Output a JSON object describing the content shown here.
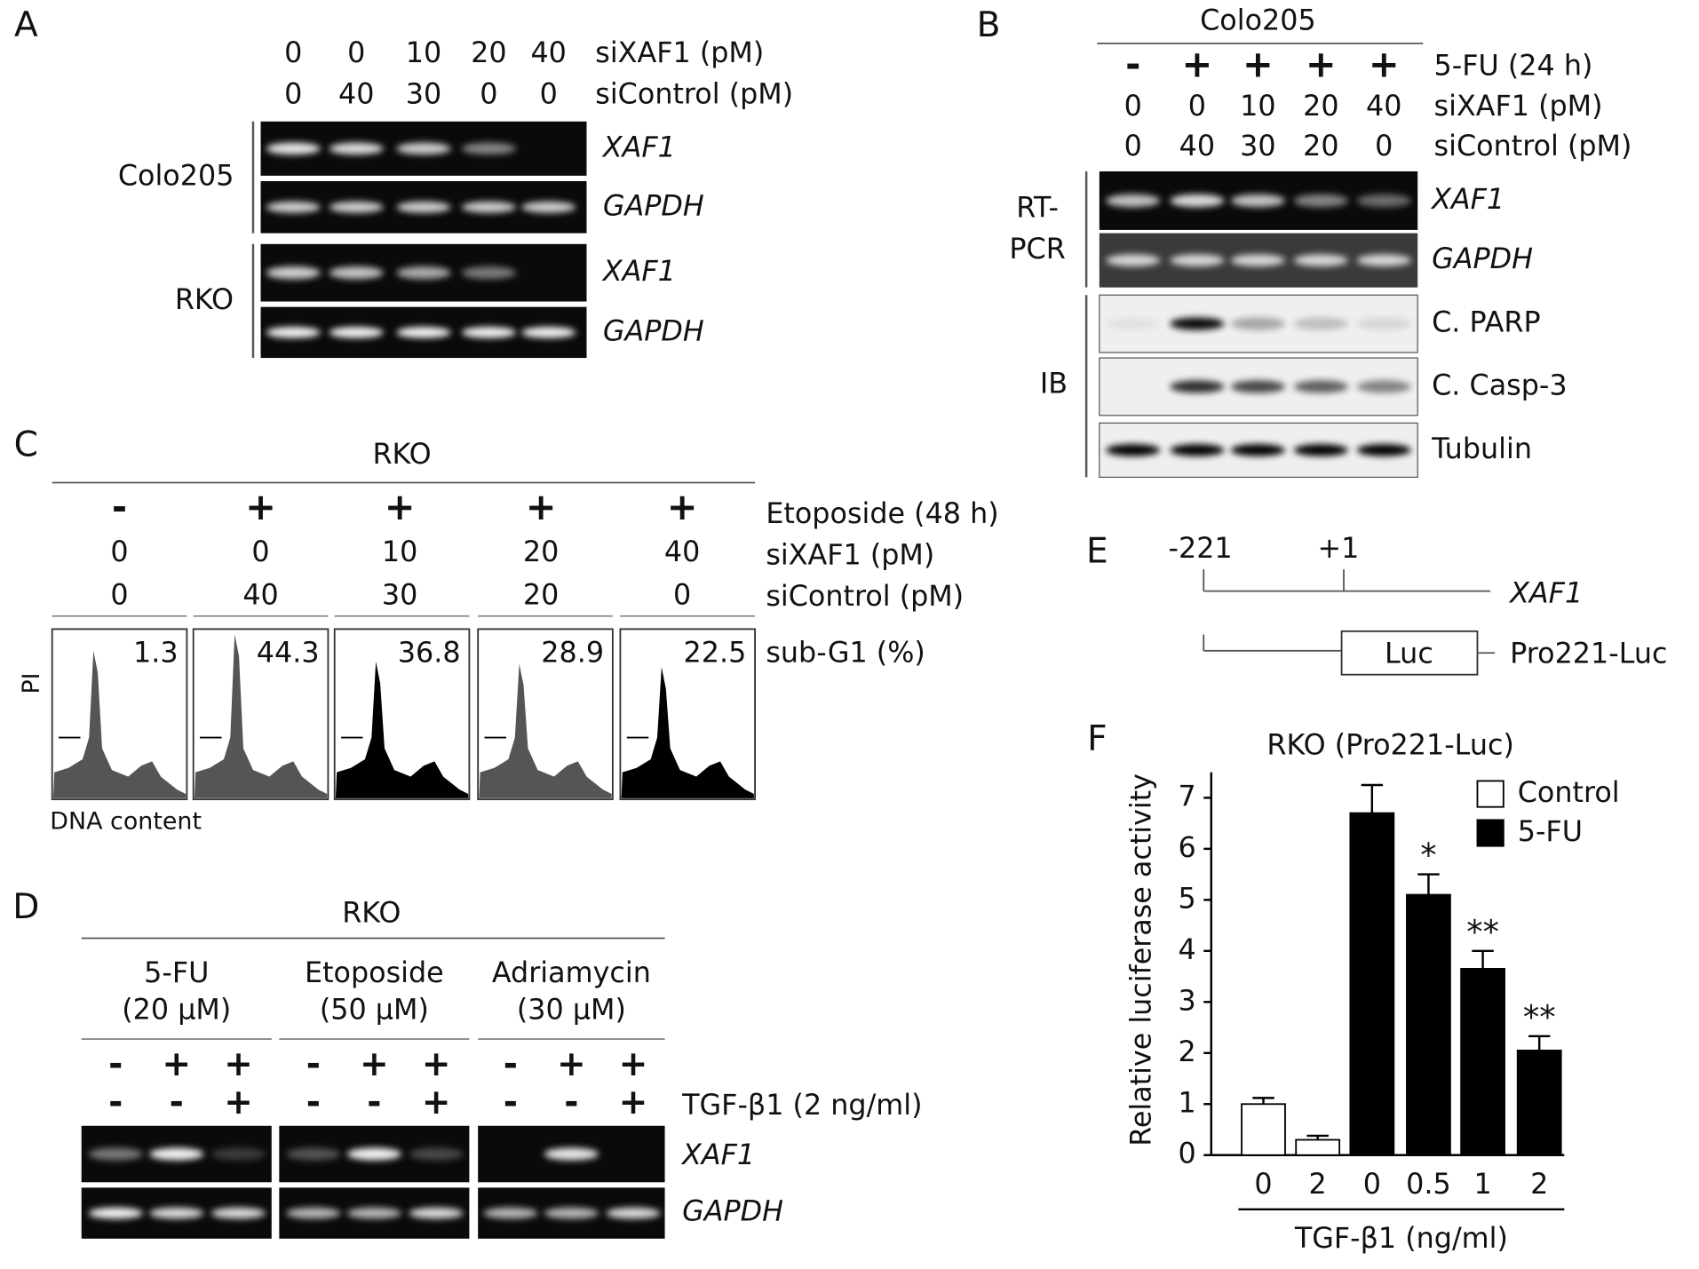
{
  "panels": {
    "a": {
      "label": "A",
      "conditions": [
        {
          "label": "siXAF1 (pM)",
          "values": [
            "0",
            "0",
            "10",
            "20",
            "40"
          ]
        },
        {
          "label": "siControl (pM)",
          "values": [
            "0",
            "40",
            "30",
            "0",
            "0"
          ]
        }
      ],
      "groups": [
        {
          "name": "Colo205",
          "rows": [
            "XAF1",
            "GAPDH"
          ]
        },
        {
          "name": "RKO",
          "rows": [
            "XAF1",
            "GAPDH"
          ]
        }
      ]
    },
    "b": {
      "label": "B",
      "cell": "Colo205",
      "conditions": [
        {
          "label": "5-FU (24 h)",
          "values": [
            "-",
            "+",
            "+",
            "+",
            "+"
          ]
        },
        {
          "label": "siXAF1 (pM)",
          "values": [
            "0",
            "0",
            "10",
            "20",
            "40"
          ]
        },
        {
          "label": "siControl (pM)",
          "values": [
            "0",
            "40",
            "30",
            "20",
            "0"
          ]
        }
      ],
      "groups": [
        {
          "name_lines": [
            "RT-",
            "PCR"
          ],
          "rows": [
            "XAF1",
            "GAPDH"
          ]
        },
        {
          "name_lines": [
            "IB"
          ],
          "rows": [
            "C. PARP",
            "C. Casp-3",
            "Tubulin"
          ]
        }
      ]
    },
    "c": {
      "label": "C",
      "cell": "RKO",
      "conditions": [
        {
          "label": "Etoposide (48 h)",
          "values": [
            "-",
            "+",
            "+",
            "+",
            "+"
          ]
        },
        {
          "label": "siXAF1 (pM)",
          "values": [
            "0",
            "0",
            "10",
            "20",
            "40"
          ]
        },
        {
          "label": "siControl (pM)",
          "values": [
            "0",
            "40",
            "30",
            "20",
            "0"
          ]
        }
      ],
      "sub_g1_label": "sub-G1 (%)",
      "sub_g1": [
        "1.3",
        "44.3",
        "36.8",
        "28.9",
        "22.5"
      ],
      "y_label": "PI",
      "x_label": "DNA content"
    },
    "d": {
      "label": "D",
      "cell": "RKO",
      "treatments": [
        {
          "name": "5-FU",
          "dose": "(20 µM)",
          "drug": [
            "-",
            "+",
            "+"
          ],
          "tgf": [
            "-",
            "-",
            "+"
          ]
        },
        {
          "name": "Etoposide",
          "dose": "(50 µM)",
          "drug": [
            "-",
            "+",
            "+"
          ],
          "tgf": [
            "-",
            "-",
            "+"
          ]
        },
        {
          "name": "Adriamycin",
          "dose": "(30 µM)",
          "drug": [
            "-",
            "+",
            "+"
          ],
          "tgf": [
            "-",
            "-",
            "+"
          ]
        }
      ],
      "tgf_label": "TGF-β1 (2 ng/ml)",
      "rows": [
        "XAF1",
        "GAPDH"
      ]
    },
    "e": {
      "label": "E",
      "positions": [
        "-221",
        "+1"
      ],
      "gene": "XAF1",
      "box": "Luc",
      "construct": "Pro221-Luc"
    }
  },
  "chart_data": {
    "type": "bar",
    "panel_label": "F",
    "title": "RKO (Pro221-Luc)",
    "y_label": "Relative luciferase activity",
    "x_label": "TGF-β1 (ng/ml)",
    "categories": [
      "0",
      "2",
      "0",
      "0.5",
      "1",
      "2"
    ],
    "series": [
      {
        "name": "Control",
        "color": "#ffffff",
        "values": [
          1.0,
          0.3,
          null,
          null,
          null,
          null
        ],
        "errors": [
          0.12,
          0.08,
          null,
          null,
          null,
          null
        ]
      },
      {
        "name": "5-FU",
        "color": "#000000",
        "values": [
          null,
          null,
          6.7,
          5.1,
          3.65,
          2.05
        ],
        "errors": [
          null,
          null,
          0.55,
          0.4,
          0.35,
          0.28
        ]
      }
    ],
    "significance": [
      null,
      null,
      null,
      "*",
      "**",
      "**"
    ],
    "ylim": [
      0,
      7.5
    ],
    "yticks": [
      0,
      1,
      2,
      3,
      4,
      5,
      6,
      7
    ],
    "legend": "upper right"
  }
}
